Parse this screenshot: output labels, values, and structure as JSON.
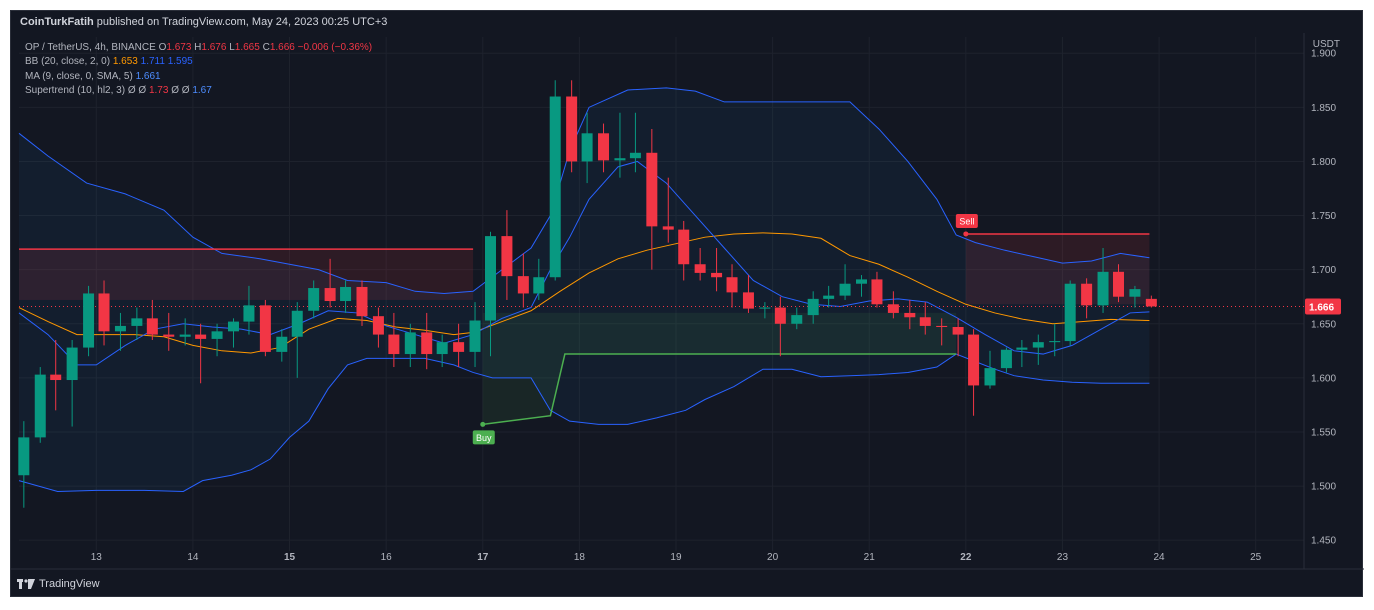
{
  "header": {
    "author": "CoinTurkFatih",
    "published_text": "published on TradingView.com, May 24, 2023 00:25 UTC+3"
  },
  "legend": {
    "symbol": "OP / TetherUS, 4h, BINANCE",
    "open_label": "O",
    "open": "1.673",
    "high_label": "H",
    "high": "1.676",
    "low_label": "L",
    "low": "1.665",
    "close_label": "C",
    "close": "1.666",
    "change": "−0.006 (−0.36%)",
    "bb_label": "BB (20, close, 2, 0)",
    "bb_basis": "1.653",
    "bb_upper": "1.711",
    "bb_lower": "1.595",
    "ma_label": "MA (9, close, 0, SMA, 5)",
    "ma_value": "1.661",
    "st_label": "Supertrend (10, hl2, 3)",
    "st_empty": "Ø",
    "st_up": "1.73",
    "st_down": "1.67"
  },
  "currency": "USDT",
  "footer": {
    "brand": "TradingView"
  },
  "colors": {
    "bg": "#131722",
    "up": "#089981",
    "down": "#f23645",
    "bb": "#2962ff",
    "basis": "#ff9800",
    "supertrend_up": "#4caf50",
    "supertrend_down": "#f23645"
  },
  "chart_data": {
    "type": "candlestick",
    "symbol": "OP / TetherUS",
    "timeframe": "4h",
    "ylim": [
      1.44,
      1.915
    ],
    "y_ticks": [
      "1.900",
      "1.850",
      "1.800",
      "1.750",
      "1.700",
      "1.650",
      "1.600",
      "1.550",
      "1.500",
      "1.450"
    ],
    "x_ticks": [
      "13",
      "14",
      "15",
      "16",
      "17",
      "18",
      "19",
      "20",
      "21",
      "22",
      "23",
      "24",
      "25"
    ],
    "x_ticks_bold": [
      "15",
      "17",
      "22"
    ],
    "x_range": [
      12.2,
      25.5
    ],
    "last_price": "1.666",
    "candles": [
      {
        "t": 12.25,
        "o": 1.51,
        "h": 1.56,
        "l": 1.48,
        "c": 1.545
      },
      {
        "t": 12.42,
        "o": 1.545,
        "h": 1.61,
        "l": 1.54,
        "c": 1.603
      },
      {
        "t": 12.58,
        "o": 1.603,
        "h": 1.635,
        "l": 1.57,
        "c": 1.598
      },
      {
        "t": 12.75,
        "o": 1.598,
        "h": 1.635,
        "l": 1.555,
        "c": 1.628
      },
      {
        "t": 12.92,
        "o": 1.628,
        "h": 1.685,
        "l": 1.62,
        "c": 1.678
      },
      {
        "t": 13.08,
        "o": 1.678,
        "h": 1.69,
        "l": 1.63,
        "c": 1.643
      },
      {
        "t": 13.25,
        "o": 1.643,
        "h": 1.66,
        "l": 1.625,
        "c": 1.648
      },
      {
        "t": 13.42,
        "o": 1.648,
        "h": 1.665,
        "l": 1.635,
        "c": 1.655
      },
      {
        "t": 13.58,
        "o": 1.655,
        "h": 1.672,
        "l": 1.635,
        "c": 1.64
      },
      {
        "t": 13.75,
        "o": 1.64,
        "h": 1.66,
        "l": 1.625,
        "c": 1.638
      },
      {
        "t": 13.92,
        "o": 1.638,
        "h": 1.655,
        "l": 1.63,
        "c": 1.64
      },
      {
        "t": 14.08,
        "o": 1.64,
        "h": 1.65,
        "l": 1.595,
        "c": 1.636
      },
      {
        "t": 14.25,
        "o": 1.636,
        "h": 1.65,
        "l": 1.62,
        "c": 1.643
      },
      {
        "t": 14.42,
        "o": 1.643,
        "h": 1.655,
        "l": 1.628,
        "c": 1.652
      },
      {
        "t": 14.58,
        "o": 1.652,
        "h": 1.685,
        "l": 1.64,
        "c": 1.667
      },
      {
        "t": 14.75,
        "o": 1.667,
        "h": 1.672,
        "l": 1.62,
        "c": 1.624
      },
      {
        "t": 14.92,
        "o": 1.624,
        "h": 1.645,
        "l": 1.615,
        "c": 1.638
      },
      {
        "t": 15.08,
        "o": 1.638,
        "h": 1.67,
        "l": 1.6,
        "c": 1.662
      },
      {
        "t": 15.25,
        "o": 1.662,
        "h": 1.69,
        "l": 1.655,
        "c": 1.683
      },
      {
        "t": 15.42,
        "o": 1.683,
        "h": 1.71,
        "l": 1.665,
        "c": 1.671
      },
      {
        "t": 15.58,
        "o": 1.671,
        "h": 1.69,
        "l": 1.66,
        "c": 1.684
      },
      {
        "t": 15.75,
        "o": 1.684,
        "h": 1.69,
        "l": 1.648,
        "c": 1.657
      },
      {
        "t": 15.92,
        "o": 1.657,
        "h": 1.665,
        "l": 1.628,
        "c": 1.64
      },
      {
        "t": 16.08,
        "o": 1.64,
        "h": 1.66,
        "l": 1.61,
        "c": 1.622
      },
      {
        "t": 16.25,
        "o": 1.622,
        "h": 1.65,
        "l": 1.61,
        "c": 1.642
      },
      {
        "t": 16.42,
        "o": 1.642,
        "h": 1.66,
        "l": 1.608,
        "c": 1.622
      },
      {
        "t": 16.58,
        "o": 1.622,
        "h": 1.64,
        "l": 1.61,
        "c": 1.633
      },
      {
        "t": 16.75,
        "o": 1.633,
        "h": 1.65,
        "l": 1.61,
        "c": 1.624
      },
      {
        "t": 16.92,
        "o": 1.624,
        "h": 1.67,
        "l": 1.61,
        "c": 1.653
      },
      {
        "t": 17.08,
        "o": 1.653,
        "h": 1.735,
        "l": 1.62,
        "c": 1.731
      },
      {
        "t": 17.25,
        "o": 1.731,
        "h": 1.755,
        "l": 1.672,
        "c": 1.694
      },
      {
        "t": 17.42,
        "o": 1.694,
        "h": 1.715,
        "l": 1.665,
        "c": 1.678
      },
      {
        "t": 17.58,
        "o": 1.678,
        "h": 1.71,
        "l": 1.672,
        "c": 1.693
      },
      {
        "t": 17.75,
        "o": 1.693,
        "h": 1.875,
        "l": 1.69,
        "c": 1.86
      },
      {
        "t": 17.92,
        "o": 1.86,
        "h": 1.875,
        "l": 1.79,
        "c": 1.8
      },
      {
        "t": 18.08,
        "o": 1.8,
        "h": 1.845,
        "l": 1.78,
        "c": 1.826
      },
      {
        "t": 18.25,
        "o": 1.826,
        "h": 1.835,
        "l": 1.79,
        "c": 1.801
      },
      {
        "t": 18.42,
        "o": 1.801,
        "h": 1.845,
        "l": 1.785,
        "c": 1.803
      },
      {
        "t": 18.58,
        "o": 1.803,
        "h": 1.845,
        "l": 1.79,
        "c": 1.808
      },
      {
        "t": 18.75,
        "o": 1.808,
        "h": 1.83,
        "l": 1.7,
        "c": 1.74
      },
      {
        "t": 18.92,
        "o": 1.74,
        "h": 1.785,
        "l": 1.725,
        "c": 1.737
      },
      {
        "t": 19.08,
        "o": 1.737,
        "h": 1.745,
        "l": 1.69,
        "c": 1.705
      },
      {
        "t": 19.25,
        "o": 1.705,
        "h": 1.72,
        "l": 1.69,
        "c": 1.697
      },
      {
        "t": 19.42,
        "o": 1.697,
        "h": 1.72,
        "l": 1.68,
        "c": 1.693
      },
      {
        "t": 19.58,
        "o": 1.693,
        "h": 1.705,
        "l": 1.665,
        "c": 1.679
      },
      {
        "t": 19.75,
        "o": 1.679,
        "h": 1.695,
        "l": 1.66,
        "c": 1.664
      },
      {
        "t": 19.92,
        "o": 1.664,
        "h": 1.67,
        "l": 1.655,
        "c": 1.665
      },
      {
        "t": 20.08,
        "o": 1.665,
        "h": 1.675,
        "l": 1.62,
        "c": 1.65
      },
      {
        "t": 20.25,
        "o": 1.65,
        "h": 1.665,
        "l": 1.645,
        "c": 1.658
      },
      {
        "t": 20.42,
        "o": 1.658,
        "h": 1.68,
        "l": 1.65,
        "c": 1.673
      },
      {
        "t": 20.58,
        "o": 1.673,
        "h": 1.685,
        "l": 1.665,
        "c": 1.676
      },
      {
        "t": 20.75,
        "o": 1.676,
        "h": 1.705,
        "l": 1.672,
        "c": 1.687
      },
      {
        "t": 20.92,
        "o": 1.687,
        "h": 1.695,
        "l": 1.675,
        "c": 1.691
      },
      {
        "t": 21.08,
        "o": 1.691,
        "h": 1.698,
        "l": 1.665,
        "c": 1.668
      },
      {
        "t": 21.25,
        "o": 1.668,
        "h": 1.68,
        "l": 1.655,
        "c": 1.66
      },
      {
        "t": 21.42,
        "o": 1.66,
        "h": 1.672,
        "l": 1.645,
        "c": 1.656
      },
      {
        "t": 21.58,
        "o": 1.656,
        "h": 1.67,
        "l": 1.64,
        "c": 1.648
      },
      {
        "t": 21.75,
        "o": 1.648,
        "h": 1.655,
        "l": 1.63,
        "c": 1.647
      },
      {
        "t": 21.92,
        "o": 1.647,
        "h": 1.655,
        "l": 1.62,
        "c": 1.64
      },
      {
        "t": 22.08,
        "o": 1.64,
        "h": 1.645,
        "l": 1.565,
        "c": 1.593
      },
      {
        "t": 22.25,
        "o": 1.593,
        "h": 1.625,
        "l": 1.59,
        "c": 1.609
      },
      {
        "t": 22.42,
        "o": 1.609,
        "h": 1.628,
        "l": 1.605,
        "c": 1.626
      },
      {
        "t": 22.58,
        "o": 1.626,
        "h": 1.635,
        "l": 1.61,
        "c": 1.628
      },
      {
        "t": 22.75,
        "o": 1.628,
        "h": 1.64,
        "l": 1.612,
        "c": 1.633
      },
      {
        "t": 22.92,
        "o": 1.633,
        "h": 1.65,
        "l": 1.62,
        "c": 1.634
      },
      {
        "t": 23.08,
        "o": 1.634,
        "h": 1.69,
        "l": 1.63,
        "c": 1.687
      },
      {
        "t": 23.25,
        "o": 1.687,
        "h": 1.692,
        "l": 1.655,
        "c": 1.667
      },
      {
        "t": 23.42,
        "o": 1.667,
        "h": 1.72,
        "l": 1.66,
        "c": 1.698
      },
      {
        "t": 23.58,
        "o": 1.698,
        "h": 1.705,
        "l": 1.67,
        "c": 1.675
      },
      {
        "t": 23.75,
        "o": 1.675,
        "h": 1.685,
        "l": 1.665,
        "c": 1.682
      },
      {
        "t": 23.92,
        "o": 1.673,
        "h": 1.676,
        "l": 1.665,
        "c": 1.666
      }
    ],
    "bb_upper": [
      [
        12.2,
        1.826
      ],
      [
        12.5,
        1.805
      ],
      [
        12.9,
        1.78
      ],
      [
        13.3,
        1.77
      ],
      [
        13.7,
        1.755
      ],
      [
        14.0,
        1.73
      ],
      [
        14.3,
        1.715
      ],
      [
        14.7,
        1.71
      ],
      [
        15.0,
        1.705
      ],
      [
        15.3,
        1.7
      ],
      [
        15.6,
        1.69
      ],
      [
        16.0,
        1.688
      ],
      [
        16.3,
        1.68
      ],
      [
        16.6,
        1.678
      ],
      [
        16.9,
        1.68
      ],
      [
        17.2,
        1.7
      ],
      [
        17.5,
        1.72
      ],
      [
        17.7,
        1.75
      ],
      [
        17.9,
        1.81
      ],
      [
        18.1,
        1.85
      ],
      [
        18.5,
        1.866
      ],
      [
        18.9,
        1.868
      ],
      [
        19.2,
        1.865
      ],
      [
        19.5,
        1.855
      ],
      [
        19.8,
        1.855
      ],
      [
        20.2,
        1.855
      ],
      [
        20.8,
        1.855
      ],
      [
        21.1,
        1.83
      ],
      [
        21.4,
        1.8
      ],
      [
        21.7,
        1.765
      ],
      [
        21.9,
        1.732
      ],
      [
        22.1,
        1.725
      ],
      [
        22.4,
        1.718
      ],
      [
        22.7,
        1.712
      ],
      [
        23.0,
        1.706
      ],
      [
        23.3,
        1.708
      ],
      [
        23.6,
        1.715
      ],
      [
        23.9,
        1.711
      ]
    ],
    "bb_lower": [
      [
        12.2,
        1.505
      ],
      [
        12.6,
        1.495
      ],
      [
        13.0,
        1.496
      ],
      [
        13.5,
        1.496
      ],
      [
        13.9,
        1.495
      ],
      [
        14.1,
        1.505
      ],
      [
        14.4,
        1.51
      ],
      [
        14.6,
        1.515
      ],
      [
        14.8,
        1.525
      ],
      [
        15.0,
        1.545
      ],
      [
        15.2,
        1.56
      ],
      [
        15.4,
        1.59
      ],
      [
        15.6,
        1.612
      ],
      [
        15.8,
        1.618
      ],
      [
        16.1,
        1.618
      ],
      [
        16.4,
        1.618
      ],
      [
        16.7,
        1.612
      ],
      [
        16.9,
        1.605
      ],
      [
        17.1,
        1.6
      ],
      [
        17.3,
        1.6
      ],
      [
        17.5,
        1.6
      ],
      [
        17.7,
        1.57
      ],
      [
        17.9,
        1.56
      ],
      [
        18.2,
        1.557
      ],
      [
        18.5,
        1.557
      ],
      [
        18.8,
        1.563
      ],
      [
        19.1,
        1.57
      ],
      [
        19.3,
        1.58
      ],
      [
        19.6,
        1.592
      ],
      [
        19.9,
        1.608
      ],
      [
        20.2,
        1.608
      ],
      [
        20.5,
        1.601
      ],
      [
        20.8,
        1.602
      ],
      [
        21.1,
        1.603
      ],
      [
        21.4,
        1.605
      ],
      [
        21.7,
        1.61
      ],
      [
        21.9,
        1.622
      ],
      [
        22.1,
        1.615
      ],
      [
        22.3,
        1.608
      ],
      [
        22.5,
        1.602
      ],
      [
        22.8,
        1.598
      ],
      [
        23.1,
        1.596
      ],
      [
        23.4,
        1.595
      ],
      [
        23.6,
        1.595
      ],
      [
        23.9,
        1.595
      ]
    ],
    "bb_basis": [
      [
        12.2,
        1.665
      ],
      [
        12.5,
        1.652
      ],
      [
        12.8,
        1.64
      ],
      [
        13.1,
        1.64
      ],
      [
        13.4,
        1.64
      ],
      [
        13.7,
        1.638
      ],
      [
        14.0,
        1.63
      ],
      [
        14.3,
        1.625
      ],
      [
        14.6,
        1.623
      ],
      [
        14.9,
        1.628
      ],
      [
        15.2,
        1.645
      ],
      [
        15.5,
        1.655
      ],
      [
        15.8,
        1.653
      ],
      [
        16.1,
        1.647
      ],
      [
        16.4,
        1.644
      ],
      [
        16.7,
        1.64
      ],
      [
        16.9,
        1.642
      ],
      [
        17.2,
        1.652
      ],
      [
        17.5,
        1.662
      ],
      [
        17.8,
        1.68
      ],
      [
        18.1,
        1.697
      ],
      [
        18.4,
        1.71
      ],
      [
        18.7,
        1.718
      ],
      [
        19.0,
        1.724
      ],
      [
        19.3,
        1.73
      ],
      [
        19.6,
        1.733
      ],
      [
        19.9,
        1.734
      ],
      [
        20.2,
        1.733
      ],
      [
        20.5,
        1.729
      ],
      [
        20.8,
        1.713
      ],
      [
        21.1,
        1.705
      ],
      [
        21.4,
        1.693
      ],
      [
        21.7,
        1.68
      ],
      [
        22.0,
        1.668
      ],
      [
        22.3,
        1.66
      ],
      [
        22.6,
        1.654
      ],
      [
        22.9,
        1.65
      ],
      [
        23.2,
        1.652
      ],
      [
        23.5,
        1.654
      ],
      [
        23.9,
        1.653
      ]
    ],
    "ma": [
      [
        12.2,
        1.66
      ],
      [
        12.5,
        1.64
      ],
      [
        12.8,
        1.612
      ],
      [
        13.0,
        1.612
      ],
      [
        13.3,
        1.63
      ],
      [
        13.6,
        1.645
      ],
      [
        13.9,
        1.65
      ],
      [
        14.2,
        1.647
      ],
      [
        14.5,
        1.645
      ],
      [
        14.8,
        1.64
      ],
      [
        15.1,
        1.65
      ],
      [
        15.4,
        1.662
      ],
      [
        15.7,
        1.66
      ],
      [
        16.0,
        1.648
      ],
      [
        16.3,
        1.64
      ],
      [
        16.6,
        1.632
      ],
      [
        16.9,
        1.64
      ],
      [
        17.2,
        1.655
      ],
      [
        17.5,
        1.665
      ],
      [
        17.7,
        1.7
      ],
      [
        17.9,
        1.73
      ],
      [
        18.1,
        1.765
      ],
      [
        18.4,
        1.795
      ],
      [
        18.6,
        1.8
      ],
      [
        18.9,
        1.78
      ],
      [
        19.2,
        1.75
      ],
      [
        19.5,
        1.72
      ],
      [
        19.8,
        1.69
      ],
      [
        20.1,
        1.675
      ],
      [
        20.4,
        1.668
      ],
      [
        20.7,
        1.666
      ],
      [
        21.0,
        1.671
      ],
      [
        21.3,
        1.673
      ],
      [
        21.6,
        1.67
      ],
      [
        21.9,
        1.656
      ],
      [
        22.2,
        1.64
      ],
      [
        22.5,
        1.625
      ],
      [
        22.8,
        1.622
      ],
      [
        23.1,
        1.63
      ],
      [
        23.4,
        1.645
      ],
      [
        23.7,
        1.66
      ],
      [
        23.9,
        1.661
      ]
    ],
    "supertrend": {
      "down_segment_1": {
        "x": [
          12.2,
          16.9
        ],
        "y": 1.719
      },
      "up_segment": [
        [
          17.0,
          1.557
        ],
        [
          17.7,
          1.565
        ],
        [
          17.85,
          1.622
        ],
        [
          21.9,
          1.622
        ]
      ],
      "down_segment_2": {
        "x": [
          22.0,
          23.9
        ],
        "y": 1.733
      }
    },
    "signals": [
      {
        "type": "buy",
        "label": "Buy",
        "t": 17.0,
        "price": 1.557
      },
      {
        "type": "sell",
        "label": "Sell",
        "t": 22.0,
        "price": 1.733
      }
    ]
  }
}
